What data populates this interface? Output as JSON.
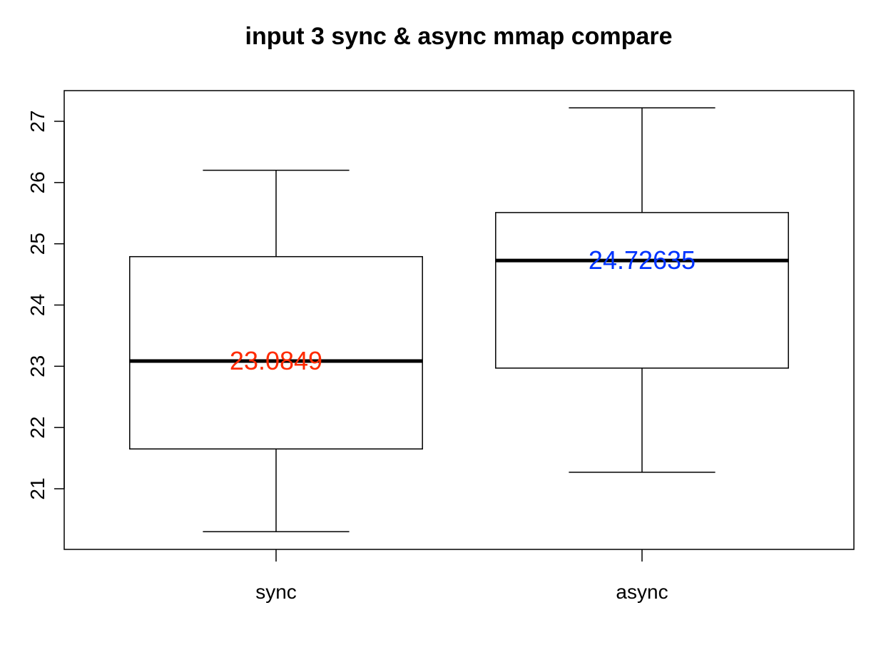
{
  "chart_data": {
    "type": "box",
    "title": "input 3 sync & async mmap compare",
    "xlabel": "",
    "ylabel": "",
    "ylim": [
      20.0,
      27.5
    ],
    "y_ticks": [
      21,
      22,
      23,
      24,
      25,
      26,
      27
    ],
    "y_tick_labels": [
      "21",
      "22",
      "23",
      "24",
      "25",
      "26",
      "27"
    ],
    "grid": false,
    "categories": [
      "sync",
      "async"
    ],
    "boxes": [
      {
        "category": "sync",
        "whisker_low": 20.3,
        "q1": 21.65,
        "median": 23.0849,
        "q3": 24.79,
        "whisker_high": 26.2,
        "median_label": "23.0849",
        "label_color": "#ff2a00"
      },
      {
        "category": "async",
        "whisker_low": 21.27,
        "q1": 22.97,
        "median": 24.72635,
        "q3": 25.51,
        "whisker_high": 27.22,
        "median_label": "24.72635",
        "label_color": "#0033ff"
      }
    ]
  }
}
